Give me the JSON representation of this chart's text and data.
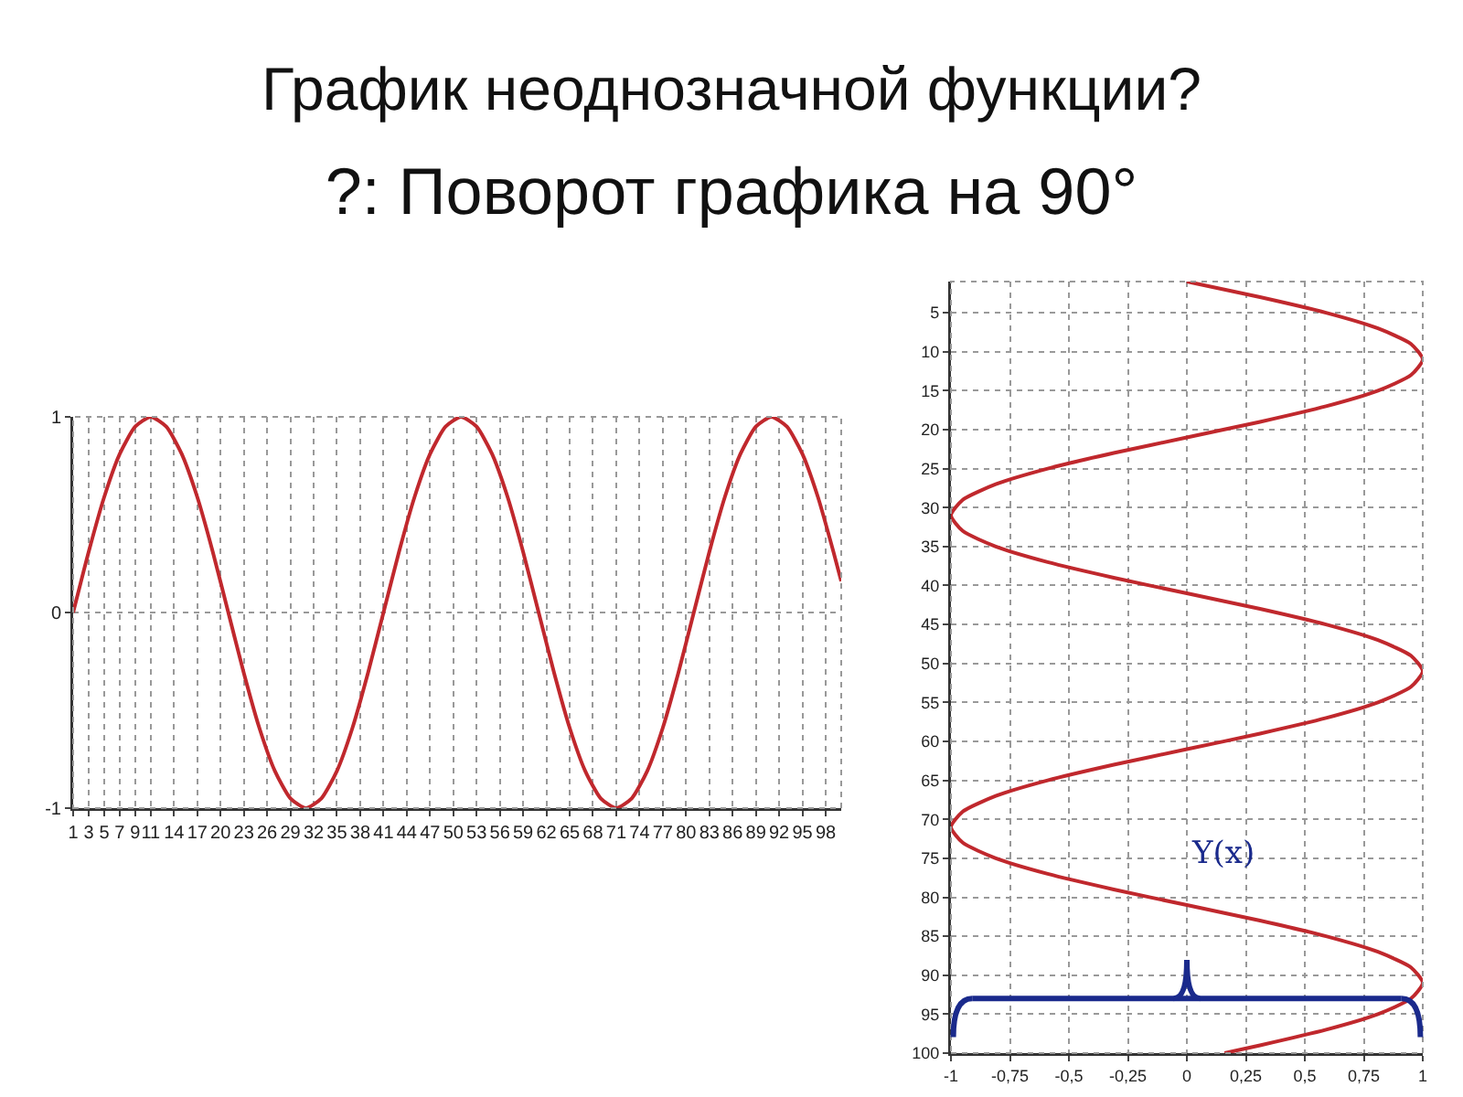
{
  "chart_data": [
    {
      "type": "line",
      "title": "График неоднозначной функции?",
      "subtitle": "?: Поворот графика на 90°",
      "x": [
        1,
        3,
        5,
        7,
        9,
        11,
        13,
        15,
        17,
        19,
        21,
        23,
        25,
        27,
        29,
        31,
        33,
        35,
        37,
        39,
        41,
        43,
        45,
        47,
        49,
        51,
        53,
        55,
        57,
        59,
        61,
        63,
        65,
        67,
        69,
        71,
        73,
        75,
        77,
        79,
        81,
        83,
        85,
        87,
        89,
        91,
        93,
        95,
        97,
        99,
        100
      ],
      "series": [
        {
          "color": "#c0282d",
          "values": [
            0,
            0.31,
            0.59,
            0.81,
            0.95,
            1,
            0.95,
            0.81,
            0.59,
            0.31,
            0,
            -0.31,
            -0.59,
            -0.81,
            -0.95,
            -1,
            -0.95,
            -0.81,
            -0.59,
            -0.31,
            0,
            0.31,
            0.59,
            0.81,
            0.95,
            1,
            0.95,
            0.81,
            0.59,
            0.31,
            0,
            -0.31,
            -0.59,
            -0.81,
            -0.95,
            -1,
            -0.95,
            -0.81,
            -0.59,
            -0.31,
            0,
            0.31,
            0.59,
            0.81,
            0.95,
            1,
            0.95,
            0.81,
            0.59,
            0.31,
            0.16
          ]
        }
      ],
      "xlim": [
        1,
        100
      ],
      "xticks": [
        1,
        3,
        5,
        7,
        9,
        11,
        14,
        17,
        20,
        23,
        26,
        29,
        32,
        35,
        38,
        41,
        44,
        47,
        50,
        53,
        56,
        59,
        62,
        65,
        68,
        71,
        74,
        77,
        80,
        83,
        86,
        89,
        92,
        95,
        98
      ],
      "ylim": [
        -1,
        1
      ],
      "yticks": [
        -1,
        0,
        1
      ],
      "grid": true,
      "line_style": "solid",
      "marker": "none"
    },
    {
      "type": "line",
      "ref_lines": [
        {
          "axis": "y",
          "value": 93,
          "label": "Y(x)",
          "color": "#1a2a8c"
        }
      ],
      "series": [
        {
          "color": "#c0282d",
          "x": [
            0,
            0.31,
            0.59,
            0.81,
            0.95,
            1,
            0.95,
            0.81,
            0.59,
            0.31,
            0,
            -0.31,
            -0.59,
            -0.81,
            -0.95,
            -1,
            -0.95,
            -0.81,
            -0.59,
            -0.31,
            0,
            0.31,
            0.59,
            0.81,
            0.95,
            1,
            0.95,
            0.81,
            0.59,
            0.31,
            0,
            -0.31,
            -0.59,
            -0.81,
            -0.95,
            -1,
            -0.95,
            -0.81,
            -0.59,
            -0.31,
            0,
            0.31,
            0.59,
            0.81,
            0.95,
            1,
            0.95,
            0.81,
            0.59,
            0.31,
            0.16
          ],
          "values": [
            1,
            3,
            5,
            7,
            9,
            11,
            13,
            15,
            17,
            19,
            21,
            23,
            25,
            27,
            29,
            31,
            33,
            35,
            37,
            39,
            41,
            43,
            45,
            47,
            49,
            51,
            53,
            55,
            57,
            59,
            61,
            63,
            65,
            67,
            69,
            71,
            73,
            75,
            77,
            79,
            81,
            83,
            85,
            87,
            89,
            91,
            93,
            95,
            97,
            99,
            100
          ]
        }
      ],
      "xlim": [
        -1,
        1
      ],
      "xticks": [
        -1,
        {
          "value": -0.75,
          "label": "-0,75"
        },
        {
          "value": -0.5,
          "label": "-0,5"
        },
        {
          "value": -0.25,
          "label": "-0,25"
        },
        0,
        {
          "value": 0.25,
          "label": "0,25"
        },
        {
          "value": 0.5,
          "label": "0,5"
        },
        {
          "value": 0.75,
          "label": "0,75"
        },
        1
      ],
      "ylim": [
        100,
        1
      ],
      "yticks": [
        5,
        10,
        15,
        20,
        25,
        30,
        35,
        40,
        45,
        50,
        55,
        60,
        65,
        70,
        75,
        80,
        85,
        90,
        95,
        100
      ],
      "grid": true,
      "line_style": "solid",
      "marker": "none"
    }
  ]
}
